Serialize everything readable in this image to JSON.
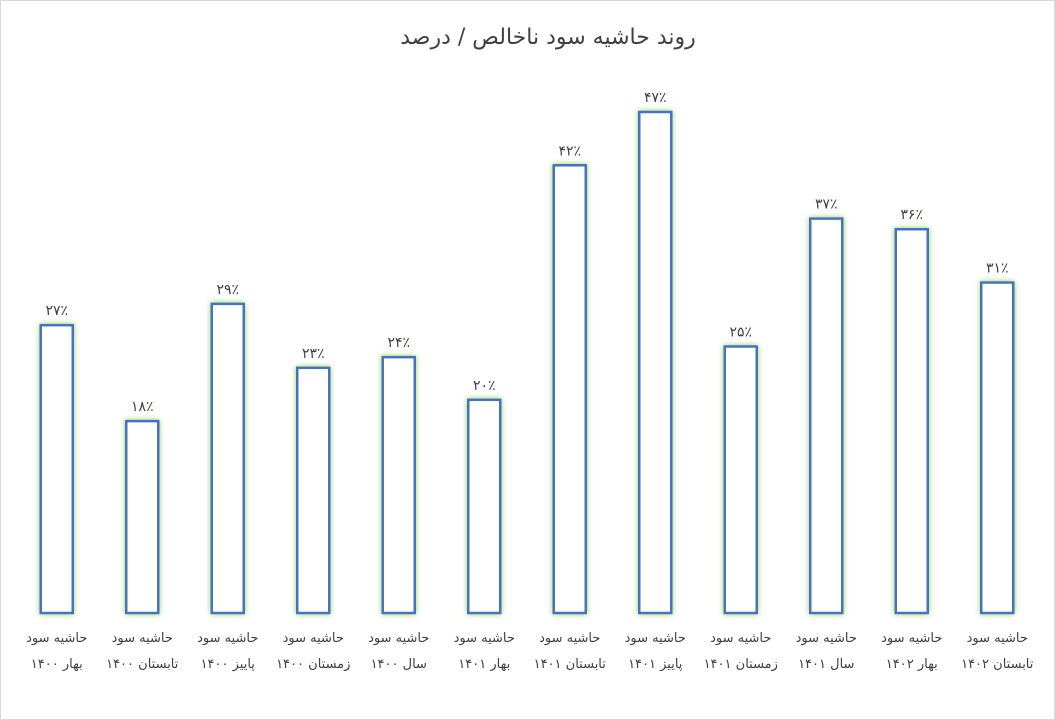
{
  "chart_data": {
    "type": "bar",
    "title": "روند حاشیه سود ناخالص / درصد",
    "categories": [
      "حاشیه سود بهار ۱۴۰۰",
      "حاشیه سود تابستان ۱۴۰۰",
      "حاشیه سود پاییز ۱۴۰۰",
      "حاشیه سود زمستان ۱۴۰۰",
      "حاشیه سود سال ۱۴۰۰",
      "حاشیه سود بهار ۱۴۰۱",
      "حاشیه سود تابستان ۱۴۰۱",
      "حاشیه سود پاییز ۱۴۰۱",
      "حاشیه سود زمستان ۱۴۰۱",
      "حاشیه سود سال ۱۴۰۱",
      "حاشیه سود بهار ۱۴۰۲",
      "حاشیه سود تابستان ۱۴۰۲"
    ],
    "values": [
      27,
      18,
      29,
      23,
      24,
      20,
      42,
      47,
      25,
      37,
      36,
      31
    ],
    "value_labels": [
      "۲۷٪",
      "۱۸٪",
      "۲۹٪",
      "۲۳٪",
      "۲۴٪",
      "۲۰٪",
      "۴۲٪",
      "۴۷٪",
      "۲۵٪",
      "۳۷٪",
      "۳۶٪",
      "۳۱٪"
    ],
    "color": "#4472c4",
    "ylim": [
      0,
      50
    ]
  }
}
